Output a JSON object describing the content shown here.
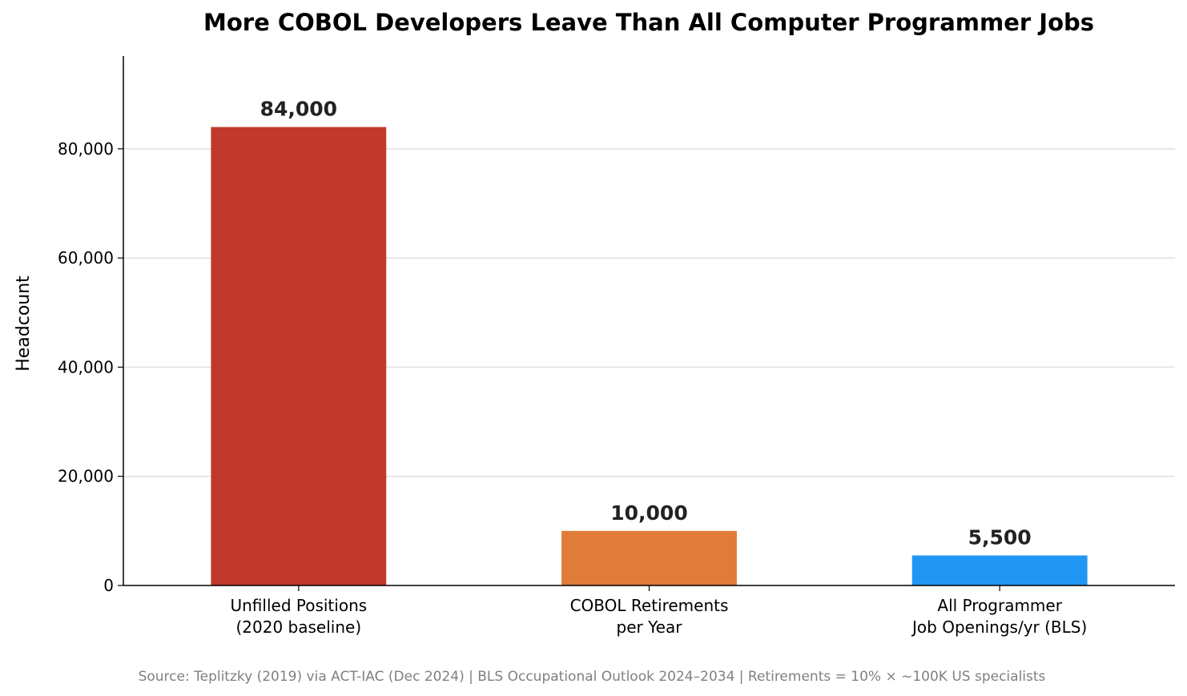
{
  "chart_data": {
    "type": "bar",
    "title": "More COBOL Developers Leave Than All Computer Programmer Jobs",
    "xlabel": "",
    "ylabel": "Headcount",
    "ylim": [
      0,
      97000
    ],
    "yticks": [
      0,
      20000,
      40000,
      60000,
      80000
    ],
    "ytick_labels": [
      "0",
      "20,000",
      "40,000",
      "60,000",
      "80,000"
    ],
    "grid": "horizontal",
    "categories": [
      [
        "Unfilled Positions",
        "(2020 baseline)"
      ],
      [
        "COBOL Retirements",
        "per Year"
      ],
      [
        "All Programmer",
        "Job Openings/yr (BLS)"
      ]
    ],
    "values": [
      84000,
      10000,
      5500
    ],
    "value_labels": [
      "84,000",
      "10,000",
      "5,500"
    ],
    "colors": [
      "#c0392b",
      "#e07b39",
      "#2196f3"
    ],
    "source": "Source: Teplitzky (2019) via ACT-IAC (Dec 2024)  |  BLS Occupational Outlook 2024–2034  |  Retirements = 10% × ~100K US specialists"
  }
}
